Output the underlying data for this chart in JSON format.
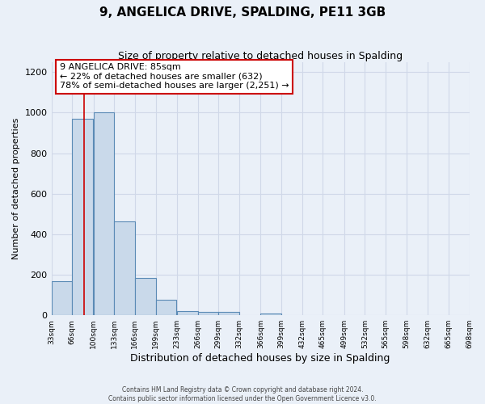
{
  "title": "9, ANGELICA DRIVE, SPALDING, PE11 3GB",
  "subtitle": "Size of property relative to detached houses in Spalding",
  "xlabel": "Distribution of detached houses by size in Spalding",
  "ylabel": "Number of detached properties",
  "bar_left_edges": [
    33,
    66,
    100,
    133,
    166,
    199,
    233,
    266,
    299,
    332,
    366,
    399,
    432,
    465,
    499,
    532,
    565,
    598,
    632,
    665
  ],
  "bar_heights": [
    170,
    970,
    1000,
    465,
    185,
    75,
    22,
    15,
    15,
    0,
    10,
    0,
    0,
    0,
    0,
    0,
    0,
    0,
    0,
    0
  ],
  "bin_width": 33,
  "bar_color": "#c9d9ea",
  "bar_edge_color": "#5a8ab5",
  "bar_linewidth": 0.8,
  "xlim_left": 33,
  "xlim_right": 698,
  "ylim_top": 1250,
  "yticks": [
    0,
    200,
    400,
    600,
    800,
    1000,
    1200
  ],
  "x_tick_positions": [
    33,
    66,
    100,
    133,
    166,
    199,
    233,
    266,
    299,
    332,
    366,
    399,
    432,
    465,
    499,
    532,
    565,
    598,
    632,
    665,
    698
  ],
  "x_tick_labels": [
    "33sqm",
    "66sqm",
    "100sqm",
    "133sqm",
    "166sqm",
    "199sqm",
    "233sqm",
    "266sqm",
    "299sqm",
    "332sqm",
    "366sqm",
    "399sqm",
    "432sqm",
    "465sqm",
    "499sqm",
    "532sqm",
    "565sqm",
    "598sqm",
    "632sqm",
    "665sqm",
    "698sqm"
  ],
  "red_line_x": 85,
  "annotation_title": "9 ANGELICA DRIVE: 85sqm",
  "annotation_line1": "← 22% of detached houses are smaller (632)",
  "annotation_line2": "78% of semi-detached houses are larger (2,251) →",
  "annotation_box_color": "#ffffff",
  "annotation_box_edge": "#cc0000",
  "grid_color": "#d0d8e8",
  "bg_color": "#eaf0f8",
  "footer1": "Contains HM Land Registry data © Crown copyright and database right 2024.",
  "footer2": "Contains public sector information licensed under the Open Government Licence v3.0."
}
